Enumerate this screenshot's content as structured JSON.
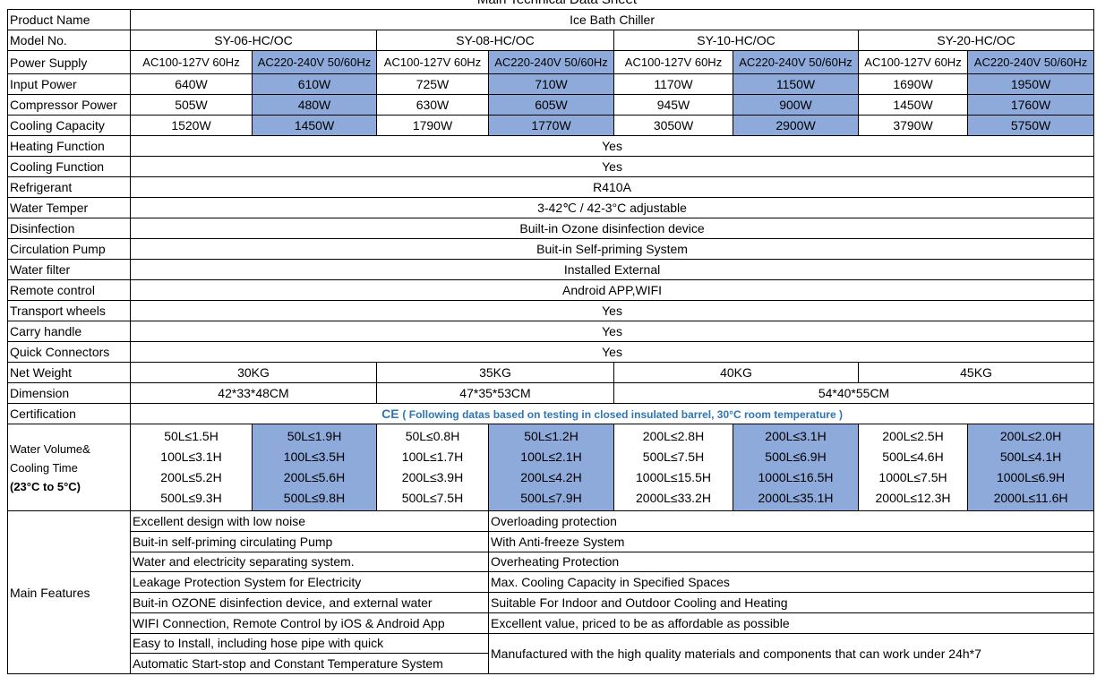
{
  "header": {
    "title": "Main Technical Data Sheet"
  },
  "table": {
    "rows": [
      {
        "label": "Product Name",
        "cells": [
          "Ice Bath Chiller"
        ]
      },
      {
        "label": "Model No.",
        "cells": [
          "SY-06-HC/OC",
          "SY-08-HC/OC",
          "SY-10-HC/OC",
          "SY-20-HC/OC"
        ]
      },
      {
        "label": "Power Supply",
        "cells": [
          "AC100-127V 60Hz",
          "AC220-240V 50/60Hz",
          "AC100-127V 60Hz",
          "AC220-240V 50/60Hz",
          "AC100-127V 60Hz",
          "AC220-240V 50/60Hz",
          "AC100-127V 60Hz",
          "AC220-240V 50/60Hz"
        ]
      },
      {
        "label": "Input Power",
        "cells": [
          "640W",
          "610W",
          "725W",
          "710W",
          "1170W",
          "1150W",
          "1690W",
          "1950W"
        ]
      },
      {
        "label": "Compressor Power",
        "cells": [
          "505W",
          "480W",
          "630W",
          "605W",
          "945W",
          "900W",
          "1450W",
          "1760W"
        ]
      },
      {
        "label": "Cooling Capacity",
        "cells": [
          "1520W",
          "1450W",
          "1790W",
          "1770W",
          "3050W",
          "2900W",
          "3790W",
          "5750W"
        ]
      },
      {
        "label": "Heating Function",
        "cells": [
          "Yes"
        ]
      },
      {
        "label": "Cooling Function",
        "cells": [
          "Yes"
        ]
      },
      {
        "label": "Refrigerant",
        "cells": [
          "R410A"
        ]
      },
      {
        "label": "Water Temper",
        "cells": [
          "3-42℃ / 42-3°C adjustable"
        ]
      },
      {
        "label": "Disinfection",
        "cells": [
          "Built-in Ozone disinfection device"
        ]
      },
      {
        "label": "Circulation Pump",
        "cells": [
          "Buit-in Self-priming System"
        ]
      },
      {
        "label": "Water filter",
        "cells": [
          "Installed External"
        ]
      },
      {
        "label": "Remote control",
        "cells": [
          "Android APP,WIFI"
        ]
      },
      {
        "label": "Transport wheels",
        "cells": [
          "Yes"
        ]
      },
      {
        "label": "Carry handle",
        "cells": [
          "Yes"
        ]
      },
      {
        "label": "Quick Connectors",
        "cells": [
          "Yes"
        ]
      },
      {
        "label": "Net Weight",
        "cells": [
          "30KG",
          "35KG",
          "40KG",
          "45KG"
        ]
      },
      {
        "label": "Dimension",
        "cells": [
          "42*33*48CM",
          "47*35*53CM",
          "54*40*55CM"
        ]
      },
      {
        "label": "Certification",
        "cells": [
          "CE"
        ],
        "note": "( Following datas based on testing in closed insulated barrel, 30°C room temperature )"
      }
    ],
    "water_volume": {
      "label": [
        "Water Volume&",
        "Cooling Time",
        "(23°C to 5°C)"
      ],
      "cells": [
        [
          "50L≤1.5H",
          "100L≤3.1H",
          "200L≤5.2H",
          "500L≤9.3H"
        ],
        [
          "50L≤1.9H",
          "100L≤3.5H",
          "200L≤5.6H",
          "500L≤9.8H"
        ],
        [
          "50L≤0.8H",
          "100L≤1.7H",
          "200L≤3.9H",
          "500L≤7.5H"
        ],
        [
          "50L≤1.2H",
          "100L≤2.1H",
          "200L≤4.2H",
          "500L≤7.9H"
        ],
        [
          "200L≤2.8H",
          "500L≤7.5H",
          "1000L≤15.5H",
          "2000L≤33.2H"
        ],
        [
          "200L≤3.1H",
          "500L≤6.9H",
          "1000L≤16.5H",
          "2000L≤35.1H"
        ],
        [
          "200L≤2.5H",
          "500L≤4.6H",
          "1000L≤7.5H",
          "2000L≤12.3H"
        ],
        [
          "200L≤2.0H",
          "500L≤4.1H",
          "1000L≤6.9H",
          "2000L≤11.6H"
        ]
      ]
    },
    "features": {
      "label": "Main Features",
      "left": [
        "Excellent design with low noise",
        "Buit-in self-priming circulating Pump",
        "Water and electricity separating system.",
        "Leakage Protection System for Electricity",
        "Buit-in OZONE disinfection device, and external water",
        "WIFI Connection, Remote Control by iOS & Android App",
        "Easy to Install, including hose pipe with quick",
        "Automatic Start-stop and Constant Temperature System"
      ],
      "right": [
        "Overloading protection",
        "With Anti-freeze System",
        "Overheating Protection",
        "Max. Cooling Capacity in Specified Spaces",
        "Suitable For Indoor and Outdoor Cooling and Heating",
        "Excellent value, priced to be as affordable as possible",
        "Manufactured with the high quality materials and components that can work under 24h*7"
      ]
    }
  }
}
